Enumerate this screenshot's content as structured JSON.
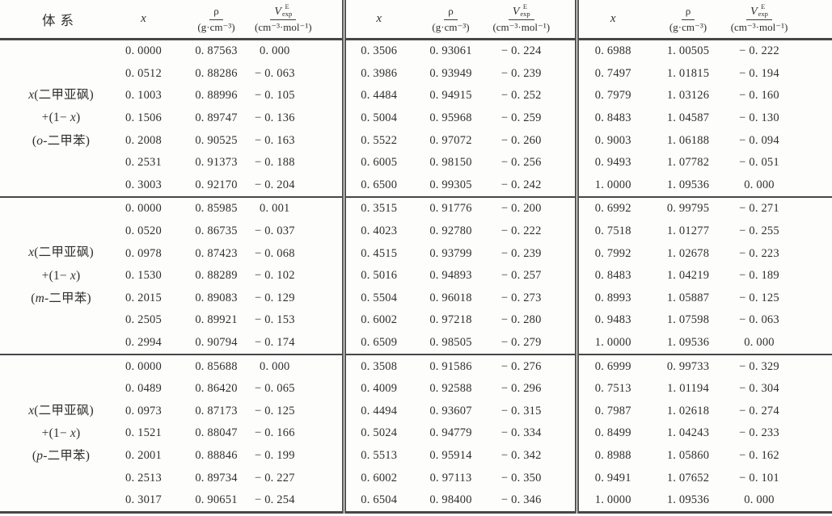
{
  "table": {
    "header": {
      "system": "体系",
      "x": "x",
      "rho_num": "ρ",
      "rho_den": "(g·cm⁻³)",
      "v_base": "V",
      "v_sup": "E",
      "v_sub": "exp",
      "v_den": "(cm⁻³·mol⁻¹)"
    },
    "groups": [
      {
        "system": [
          [
            {
              "t": "x",
              "i": true
            },
            {
              "t": "(二甲亚砜)"
            }
          ],
          [
            {
              "t": "+(1− "
            },
            {
              "t": "x",
              "i": true
            },
            {
              "t": ")"
            }
          ],
          [
            {
              "t": "("
            },
            {
              "t": "o",
              "i": true
            },
            {
              "t": "-二甲苯)"
            }
          ]
        ],
        "rows": [
          [
            "0. 0000",
            "0. 87563",
            "0. 000",
            "0. 3506",
            "0. 93061",
            "− 0. 224",
            "0. 6988",
            "1. 00505",
            "− 0. 222"
          ],
          [
            "0. 0512",
            "0. 88286",
            "− 0. 063",
            "0. 3986",
            "0. 93949",
            "− 0. 239",
            "0. 7497",
            "1. 01815",
            "− 0. 194"
          ],
          [
            "0. 1003",
            "0. 88996",
            "− 0. 105",
            "0. 4484",
            "0. 94915",
            "− 0. 252",
            "0. 7979",
            "1. 03126",
            "− 0. 160"
          ],
          [
            "0. 1506",
            "0. 89747",
            "− 0. 136",
            "0. 5004",
            "0. 95968",
            "− 0. 259",
            "0. 8483",
            "1. 04587",
            "− 0. 130"
          ],
          [
            "0. 2008",
            "0. 90525",
            "− 0. 163",
            "0. 5522",
            "0. 97072",
            "− 0. 260",
            "0. 9003",
            "1. 06188",
            "− 0. 094"
          ],
          [
            "0. 2531",
            "0. 91373",
            "− 0. 188",
            "0. 6005",
            "0. 98150",
            "− 0. 256",
            "0. 9493",
            "1. 07782",
            "− 0. 051"
          ],
          [
            "0. 3003",
            "0. 92170",
            "− 0. 204",
            "0. 6500",
            "0. 99305",
            "− 0. 242",
            "1. 0000",
            "1. 09536",
            "0. 000"
          ]
        ]
      },
      {
        "system": [
          [
            {
              "t": "x",
              "i": true
            },
            {
              "t": "(二甲亚砜)"
            }
          ],
          [
            {
              "t": "+(1− "
            },
            {
              "t": "x",
              "i": true
            },
            {
              "t": ")"
            }
          ],
          [
            {
              "t": "("
            },
            {
              "t": "m",
              "i": true
            },
            {
              "t": "-二甲苯)"
            }
          ]
        ],
        "rows": [
          [
            "0. 0000",
            "0. 85985",
            "0. 001",
            "0. 3515",
            "0. 91776",
            "− 0. 200",
            "0. 6992",
            "0. 99795",
            "− 0. 271"
          ],
          [
            "0. 0520",
            "0. 86735",
            "− 0. 037",
            "0. 4023",
            "0. 92780",
            "− 0. 222",
            "0. 7518",
            "1. 01277",
            "− 0. 255"
          ],
          [
            "0. 0978",
            "0. 87423",
            "− 0. 068",
            "0. 4515",
            "0. 93799",
            "− 0. 239",
            "0. 7992",
            "1. 02678",
            "− 0. 223"
          ],
          [
            "0. 1530",
            "0. 88289",
            "− 0. 102",
            "0. 5016",
            "0. 94893",
            "− 0. 257",
            "0. 8483",
            "1. 04219",
            "− 0. 189"
          ],
          [
            "0. 2015",
            "0. 89083",
            "− 0. 129",
            "0. 5504",
            "0. 96018",
            "− 0. 273",
            "0. 8993",
            "1. 05887",
            "− 0. 125"
          ],
          [
            "0. 2505",
            "0. 89921",
            "− 0. 153",
            "0. 6002",
            "0. 97218",
            "− 0. 280",
            "0. 9483",
            "1. 07598",
            "− 0. 063"
          ],
          [
            "0. 2994",
            "0. 90794",
            "− 0. 174",
            "0. 6509",
            "0. 98505",
            "− 0. 279",
            "1. 0000",
            "1. 09536",
            "0. 000"
          ]
        ]
      },
      {
        "system": [
          [
            {
              "t": "x",
              "i": true
            },
            {
              "t": "(二甲亚砜)"
            }
          ],
          [
            {
              "t": "+(1− "
            },
            {
              "t": "x",
              "i": true
            },
            {
              "t": ")"
            }
          ],
          [
            {
              "t": "("
            },
            {
              "t": "p",
              "i": true
            },
            {
              "t": "-二甲苯)"
            }
          ]
        ],
        "rows": [
          [
            "0. 0000",
            "0. 85688",
            "0. 000",
            "0. 3508",
            "0. 91586",
            "− 0. 276",
            "0. 6999",
            "0. 99733",
            "− 0. 329"
          ],
          [
            "0. 0489",
            "0. 86420",
            "− 0. 065",
            "0. 4009",
            "0. 92588",
            "− 0. 296",
            "0. 7513",
            "1. 01194",
            "− 0. 304"
          ],
          [
            "0. 0973",
            "0. 87173",
            "− 0. 125",
            "0. 4494",
            "0. 93607",
            "− 0. 315",
            "0. 7987",
            "1. 02618",
            "− 0. 274"
          ],
          [
            "0. 1521",
            "0. 88047",
            "− 0. 166",
            "0. 5024",
            "0. 94779",
            "− 0. 334",
            "0. 8499",
            "1. 04243",
            "− 0. 233"
          ],
          [
            "0. 2001",
            "0. 88846",
            "− 0. 199",
            "0. 5513",
            "0. 95914",
            "− 0. 342",
            "0. 8988",
            "1. 05860",
            "− 0. 162"
          ],
          [
            "0. 2513",
            "0. 89734",
            "− 0. 227",
            "0. 6002",
            "0. 97113",
            "− 0. 350",
            "0. 9491",
            "1. 07652",
            "− 0. 101"
          ],
          [
            "0. 3017",
            "0. 90651",
            "− 0. 254",
            "0. 6504",
            "0. 98400",
            "− 0. 346",
            "1. 0000",
            "1. 09536",
            "0. 000"
          ]
        ]
      }
    ]
  }
}
